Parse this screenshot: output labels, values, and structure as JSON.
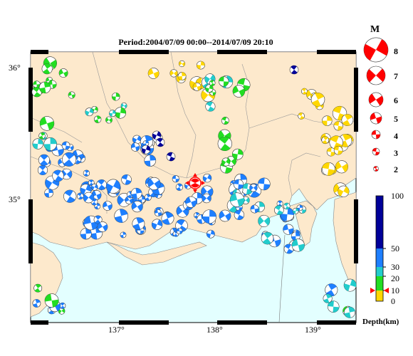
{
  "title": "Period:2004/07/09 00:00--2014/07/09 20:10",
  "lat_labels": [
    "36°",
    "35°"
  ],
  "lon_labels": [
    "137°",
    "138°",
    "139°"
  ],
  "magnitude_legend": {
    "title": "M",
    "values": [
      "8",
      "7",
      "6",
      "5",
      "4",
      "3",
      "2"
    ]
  },
  "depth_legend": {
    "title": "Depth(km)",
    "ticks": [
      "100",
      "50",
      "30",
      "20",
      "10",
      "0"
    ],
    "colors": {
      "0-10": "#ffd700",
      "10-20": "#ffd700",
      "20-30": "#22dd22",
      "30-50": "#22cccc",
      "50-100": "#1e7fff",
      "100+": "#000099"
    }
  },
  "colors": {
    "land": "#fde9cc",
    "sea": "#e3ffff",
    "border": "#000000",
    "epicenter_marker": "#ff0000",
    "mechanism_red": "#ff0000"
  }
}
